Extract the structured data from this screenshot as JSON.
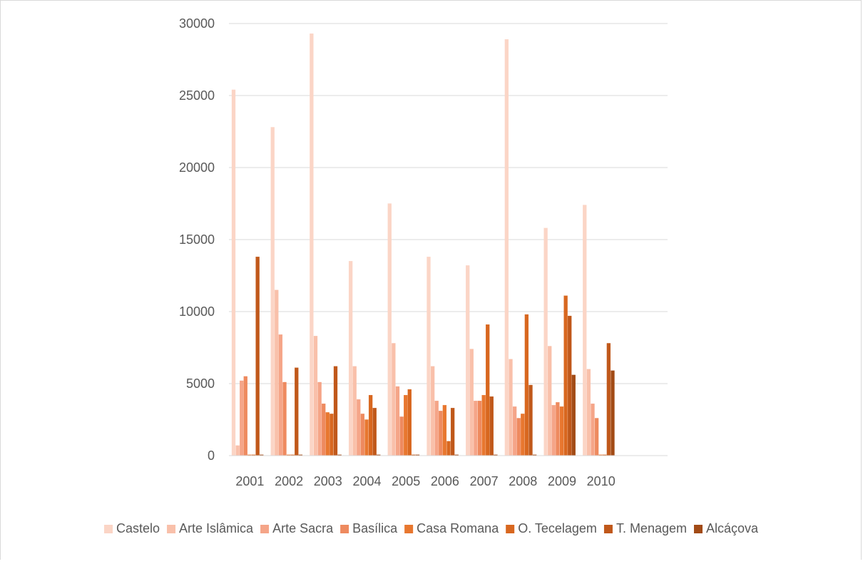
{
  "chart_data": {
    "type": "bar",
    "categories": [
      "2001",
      "2002",
      "2003",
      "2004",
      "2005",
      "2006",
      "2007",
      "2008",
      "2009",
      "2010"
    ],
    "series": [
      {
        "name": "Castelo",
        "color": "#fbd5c6",
        "values": [
          25400,
          22800,
          29300,
          13500,
          17500,
          13800,
          13200,
          28900,
          15800,
          17400
        ]
      },
      {
        "name": "Arte Islâmica",
        "color": "#f9c0aa",
        "values": [
          700,
          11500,
          8300,
          6200,
          7800,
          6200,
          7400,
          6700,
          7600,
          6000
        ]
      },
      {
        "name": "Arte Sacra",
        "color": "#f5a588",
        "values": [
          5200,
          8400,
          5100,
          3900,
          4800,
          3800,
          3800,
          3400,
          3500,
          3600
        ]
      },
      {
        "name": "Basílica",
        "color": "#ee8a5f",
        "values": [
          5500,
          5100,
          3600,
          2900,
          2700,
          3100,
          3800,
          2600,
          3700,
          2600
        ]
      },
      {
        "name": "Casa Romana",
        "color": "#e8772f",
        "values": [
          0,
          0,
          3000,
          2500,
          4200,
          3500,
          4200,
          2900,
          3400,
          0
        ]
      },
      {
        "name": "O. Tecelagem",
        "color": "#d8671f",
        "values": [
          0,
          0,
          2900,
          4200,
          4600,
          1000,
          9100,
          9800,
          11100,
          0
        ]
      },
      {
        "name": "T. Menagem",
        "color": "#c0581a",
        "values": [
          13800,
          6100,
          6200,
          3300,
          0,
          3300,
          4100,
          4900,
          9700,
          7800
        ]
      },
      {
        "name": "Alcáçova",
        "color": "#a24b16",
        "values": [
          0,
          0,
          0,
          0,
          0,
          0,
          0,
          0,
          5600,
          5900
        ]
      }
    ],
    "yticks": [
      "0",
      "5000",
      "10000",
      "15000",
      "20000",
      "25000",
      "30000"
    ],
    "ylim": [
      0,
      30000
    ],
    "grid": true,
    "legend_position": "bottom",
    "title": "",
    "xlabel": "",
    "ylabel": ""
  }
}
